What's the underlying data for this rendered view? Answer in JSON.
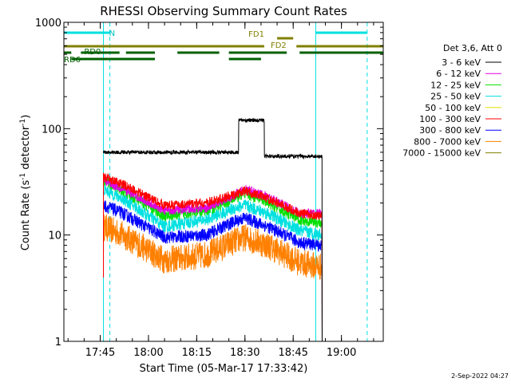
{
  "chart_data": {
    "type": "line",
    "title": "RHESSI Observing Summary Count Rates",
    "xlabel": "Start Time (05-Mar-17 17:33:42)",
    "ylabel_main": "Count Rate (s",
    "ylabel_sup1": "-1",
    "ylabel_mid": " detector",
    "ylabel_sup2": "-1",
    "ylabel_end": ")",
    "y_scale": "log",
    "ylim": [
      1,
      1000
    ],
    "x_range_minutes": [
      "17:33:42",
      "19:13"
    ],
    "x_ticks": [
      "17:45",
      "18:00",
      "18:15",
      "18:30",
      "18:45",
      "19:00"
    ],
    "y_ticks": [
      "1",
      "10",
      "100",
      "1000"
    ],
    "footer_date": "2-Sep-2022 04:27",
    "legend_header": "Det 3,6, Att 0",
    "legend_position": "right",
    "series": [
      {
        "name": "3 - 6 keV",
        "color": "#000000"
      },
      {
        "name": "6 - 12 keV",
        "color": "#e000e0"
      },
      {
        "name": "12 - 25 keV",
        "color": "#00e000"
      },
      {
        "name": "25 - 50 keV",
        "color": "#00e0e0"
      },
      {
        "name": "50 - 100 keV",
        "color": "#e0e000"
      },
      {
        "name": "100 - 300 keV",
        "color": "#ff0000"
      },
      {
        "name": "300 - 800 keV",
        "color": "#0000ff"
      },
      {
        "name": "800 - 7000 keV",
        "color": "#ff8000"
      },
      {
        "name": "7000 - 15000 keV",
        "color": "#808000"
      }
    ],
    "status_bars": [
      {
        "label": "N",
        "color": "#00e0e0",
        "segments": [
          [
            "17:33:42",
            "17:48"
          ],
          [
            "18:52",
            "19:08"
          ]
        ]
      },
      {
        "label": "FD1",
        "color": "#808000",
        "segments": [
          [
            "18:40",
            "18:45"
          ]
        ]
      },
      {
        "label": "FD2",
        "color": "#808000",
        "segments": [
          [
            "17:33:42",
            "18:36"
          ],
          [
            "18:46",
            "19:13"
          ]
        ]
      },
      {
        "label": "RD0",
        "color": "#006000",
        "segments": [
          [
            "17:33:42",
            "17:36"
          ],
          [
            "17:39",
            "17:51"
          ],
          [
            "17:53",
            "18:02"
          ],
          [
            "18:09",
            "18:22"
          ],
          [
            "18:25",
            "18:43"
          ],
          [
            "18:47",
            "19:13"
          ]
        ]
      },
      {
        "label": "RD6",
        "color": "#006000",
        "segments": [
          [
            "17:36",
            "18:02"
          ],
          [
            "18:25",
            "18:35"
          ]
        ]
      }
    ],
    "vertical_markers": [
      {
        "time": "17:33:42",
        "style": "solid",
        "color": "#00e0e0"
      },
      {
        "time": "17:46",
        "style": "solid",
        "color": "#00e0e0"
      },
      {
        "time": "17:48",
        "style": "dashed",
        "color": "#00e0e0"
      },
      {
        "time": "18:52",
        "style": "solid",
        "color": "#00e0e0"
      },
      {
        "time": "19:08",
        "style": "dashed",
        "color": "#00e0e0"
      }
    ],
    "traces": {
      "3 - 6 keV": [
        [
          "17:46",
          60
        ],
        [
          "17:58",
          60
        ],
        [
          "18:10",
          60
        ],
        [
          "18:22",
          60
        ],
        [
          "18:27",
          60
        ],
        [
          "18:28",
          120
        ],
        [
          "18:35",
          120
        ],
        [
          "18:36",
          55
        ],
        [
          "18:50",
          55
        ],
        [
          "18:54",
          55
        ]
      ],
      "6 - 12 keV": [
        [
          "17:46",
          33
        ],
        [
          "17:52",
          27
        ],
        [
          "18:05",
          17
        ],
        [
          "18:18",
          18
        ],
        [
          "18:27",
          24
        ],
        [
          "18:30",
          27
        ],
        [
          "18:37",
          23
        ],
        [
          "18:47",
          16
        ],
        [
          "18:54",
          16
        ]
      ],
      "12 - 25 keV": [
        [
          "17:46",
          33
        ],
        [
          "17:52",
          26
        ],
        [
          "18:05",
          15
        ],
        [
          "18:18",
          17
        ],
        [
          "18:27",
          22
        ],
        [
          "18:30",
          25
        ],
        [
          "18:37",
          20
        ],
        [
          "18:47",
          14
        ],
        [
          "18:54",
          13
        ]
      ],
      "100 - 300 keV": [
        [
          "17:46",
          35
        ],
        [
          "17:52",
          30
        ],
        [
          "18:05",
          19
        ],
        [
          "18:18",
          20
        ],
        [
          "18:27",
          24
        ],
        [
          "18:30",
          26
        ],
        [
          "18:37",
          22
        ],
        [
          "18:47",
          16
        ],
        [
          "18:54",
          15
        ]
      ],
      "25 - 50 keV": [
        [
          "17:46",
          27
        ],
        [
          "17:52",
          22
        ],
        [
          "18:05",
          12
        ],
        [
          "18:18",
          14
        ],
        [
          "18:27",
          18
        ],
        [
          "18:30",
          19
        ],
        [
          "18:37",
          16
        ],
        [
          "18:47",
          11
        ],
        [
          "18:54",
          10
        ]
      ],
      "300 - 800 keV": [
        [
          "17:46",
          19
        ],
        [
          "17:52",
          16
        ],
        [
          "18:05",
          9.5
        ],
        [
          "18:18",
          10
        ],
        [
          "18:27",
          13.5
        ],
        [
          "18:30",
          14.5
        ],
        [
          "18:37",
          12
        ],
        [
          "18:47",
          8.5
        ],
        [
          "18:54",
          8
        ]
      ],
      "800 - 7000 keV": [
        [
          "17:46",
          12
        ],
        [
          "17:52",
          10
        ],
        [
          "18:05",
          5.8
        ],
        [
          "18:18",
          6.5
        ],
        [
          "18:27",
          8.8
        ],
        [
          "18:30",
          9.5
        ],
        [
          "18:37",
          8
        ],
        [
          "18:47",
          5.5
        ],
        [
          "18:54",
          5
        ]
      ]
    }
  }
}
